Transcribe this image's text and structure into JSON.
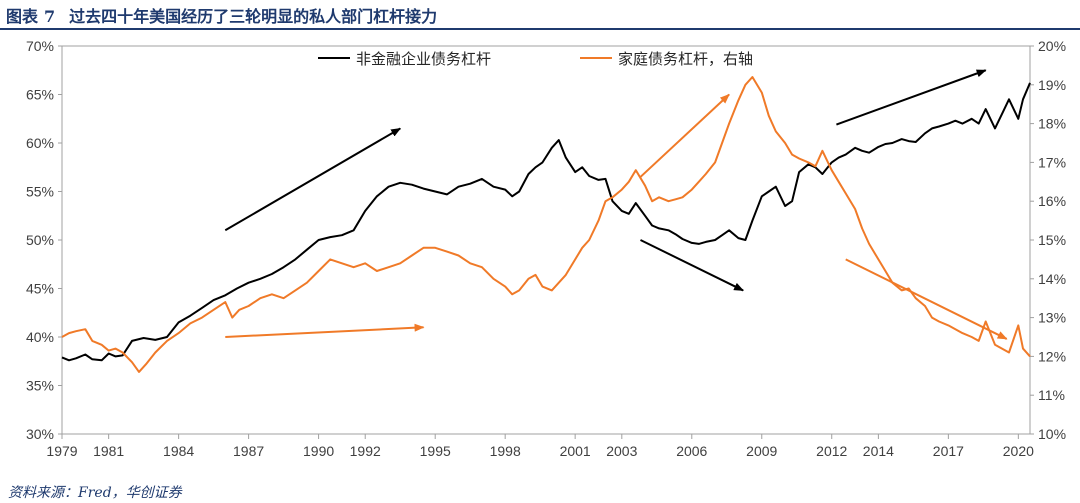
{
  "header": {
    "label": "图表",
    "number": "7",
    "title": "过去四十年美国经历了三轮明显的私人部门杠杆接力"
  },
  "source": "资料来源：Fred，华创证券",
  "colors": {
    "series_black": "#000000",
    "series_orange": "#f07a28",
    "header": "#1f3a6e",
    "axis": "#a0a0a0"
  },
  "chart_data": {
    "type": "line",
    "xlabel": "",
    "ylabel_left": "",
    "ylabel_right": "",
    "x_ticks": [
      "1979",
      "1981",
      "1984",
      "1987",
      "1990",
      "1992",
      "1995",
      "1998",
      "2001",
      "2003",
      "2006",
      "2009",
      "2012",
      "2014",
      "2017",
      "2020"
    ],
    "x_range": [
      1979.0,
      2020.5
    ],
    "y_left": {
      "range": [
        30,
        70
      ],
      "ticks": [
        "30%",
        "35%",
        "40%",
        "45%",
        "50%",
        "55%",
        "60%",
        "65%",
        "70%"
      ]
    },
    "y_right": {
      "range": [
        10,
        20
      ],
      "ticks": [
        "10%",
        "11%",
        "12%",
        "13%",
        "14%",
        "15%",
        "16%",
        "17%",
        "18%",
        "19%",
        "20%"
      ]
    },
    "legend_position": "top-center",
    "series": [
      {
        "name": "非金融企业债务杠杆",
        "axis": "left",
        "color": "#000000",
        "points": [
          [
            1979.0,
            37.9
          ],
          [
            1979.3,
            37.6
          ],
          [
            1979.6,
            37.8
          ],
          [
            1980.0,
            38.2
          ],
          [
            1980.3,
            37.7
          ],
          [
            1980.7,
            37.6
          ],
          [
            1981.0,
            38.3
          ],
          [
            1981.3,
            38.0
          ],
          [
            1981.6,
            38.1
          ],
          [
            1982.0,
            39.6
          ],
          [
            1982.5,
            39.9
          ],
          [
            1983.0,
            39.7
          ],
          [
            1983.5,
            40.0
          ],
          [
            1984.0,
            41.5
          ],
          [
            1984.5,
            42.2
          ],
          [
            1985.0,
            43.0
          ],
          [
            1985.5,
            43.8
          ],
          [
            1986.0,
            44.3
          ],
          [
            1986.5,
            45.0
          ],
          [
            1987.0,
            45.6
          ],
          [
            1987.5,
            46.0
          ],
          [
            1988.0,
            46.5
          ],
          [
            1988.5,
            47.2
          ],
          [
            1989.0,
            48.0
          ],
          [
            1989.5,
            49.0
          ],
          [
            1990.0,
            50.0
          ],
          [
            1990.5,
            50.3
          ],
          [
            1991.0,
            50.5
          ],
          [
            1991.5,
            51.0
          ],
          [
            1992.0,
            53.0
          ],
          [
            1992.5,
            54.5
          ],
          [
            1993.0,
            55.5
          ],
          [
            1993.5,
            55.9
          ],
          [
            1994.0,
            55.7
          ],
          [
            1994.5,
            55.3
          ],
          [
            1995.0,
            55.0
          ],
          [
            1995.5,
            54.7
          ],
          [
            1996.0,
            55.5
          ],
          [
            1996.5,
            55.8
          ],
          [
            1997.0,
            56.3
          ],
          [
            1997.5,
            55.5
          ],
          [
            1998.0,
            55.2
          ],
          [
            1998.3,
            54.5
          ],
          [
            1998.6,
            55.0
          ],
          [
            1999.0,
            56.8
          ],
          [
            1999.3,
            57.5
          ],
          [
            1999.6,
            58.0
          ],
          [
            2000.0,
            59.5
          ],
          [
            2000.3,
            60.3
          ],
          [
            2000.6,
            58.5
          ],
          [
            2001.0,
            57.0
          ],
          [
            2001.3,
            57.5
          ],
          [
            2001.6,
            56.6
          ],
          [
            2002.0,
            56.2
          ],
          [
            2002.3,
            56.3
          ],
          [
            2002.6,
            54.0
          ],
          [
            2003.0,
            53.0
          ],
          [
            2003.3,
            52.7
          ],
          [
            2003.6,
            53.8
          ],
          [
            2004.0,
            52.5
          ],
          [
            2004.3,
            51.5
          ],
          [
            2004.6,
            51.2
          ],
          [
            2005.0,
            51.0
          ],
          [
            2005.3,
            50.6
          ],
          [
            2005.6,
            50.1
          ],
          [
            2006.0,
            49.7
          ],
          [
            2006.3,
            49.6
          ],
          [
            2006.6,
            49.8
          ],
          [
            2007.0,
            50.0
          ],
          [
            2007.3,
            50.5
          ],
          [
            2007.6,
            51.0
          ],
          [
            2008.0,
            50.2
          ],
          [
            2008.3,
            50.0
          ],
          [
            2008.6,
            52.0
          ],
          [
            2009.0,
            54.5
          ],
          [
            2009.3,
            55.0
          ],
          [
            2009.6,
            55.5
          ],
          [
            2010.0,
            53.5
          ],
          [
            2010.3,
            54.0
          ],
          [
            2010.6,
            57.0
          ],
          [
            2011.0,
            57.8
          ],
          [
            2011.3,
            57.5
          ],
          [
            2011.6,
            56.8
          ],
          [
            2012.0,
            58.0
          ],
          [
            2012.3,
            58.5
          ],
          [
            2012.6,
            58.8
          ],
          [
            2013.0,
            59.5
          ],
          [
            2013.3,
            59.2
          ],
          [
            2013.6,
            59.0
          ],
          [
            2014.0,
            59.6
          ],
          [
            2014.3,
            59.9
          ],
          [
            2014.6,
            60.0
          ],
          [
            2015.0,
            60.4
          ],
          [
            2015.3,
            60.2
          ],
          [
            2015.6,
            60.1
          ],
          [
            2016.0,
            61.0
          ],
          [
            2016.3,
            61.5
          ],
          [
            2016.6,
            61.7
          ],
          [
            2017.0,
            62.0
          ],
          [
            2017.3,
            62.3
          ],
          [
            2017.6,
            62.0
          ],
          [
            2018.0,
            62.5
          ],
          [
            2018.3,
            62.0
          ],
          [
            2018.6,
            63.5
          ],
          [
            2019.0,
            61.5
          ],
          [
            2019.3,
            63.0
          ],
          [
            2019.6,
            64.5
          ],
          [
            2020.0,
            62.5
          ],
          [
            2020.2,
            64.5
          ],
          [
            2020.5,
            66.2
          ]
        ]
      },
      {
        "name": "家庭债务杠杆，右轴",
        "axis": "right",
        "color": "#f07a28",
        "points": [
          [
            1979.0,
            12.5
          ],
          [
            1979.3,
            12.6
          ],
          [
            1979.6,
            12.65
          ],
          [
            1980.0,
            12.7
          ],
          [
            1980.3,
            12.4
          ],
          [
            1980.7,
            12.3
          ],
          [
            1981.0,
            12.15
          ],
          [
            1981.3,
            12.2
          ],
          [
            1981.6,
            12.1
          ],
          [
            1982.0,
            11.85
          ],
          [
            1982.3,
            11.6
          ],
          [
            1982.6,
            11.8
          ],
          [
            1983.0,
            12.1
          ],
          [
            1983.5,
            12.4
          ],
          [
            1984.0,
            12.6
          ],
          [
            1984.5,
            12.85
          ],
          [
            1985.0,
            13.0
          ],
          [
            1985.5,
            13.2
          ],
          [
            1986.0,
            13.4
          ],
          [
            1986.3,
            13.0
          ],
          [
            1986.6,
            13.2
          ],
          [
            1987.0,
            13.3
          ],
          [
            1987.5,
            13.5
          ],
          [
            1988.0,
            13.6
          ],
          [
            1988.5,
            13.5
          ],
          [
            1989.0,
            13.7
          ],
          [
            1989.5,
            13.9
          ],
          [
            1990.0,
            14.2
          ],
          [
            1990.5,
            14.5
          ],
          [
            1991.0,
            14.4
          ],
          [
            1991.5,
            14.3
          ],
          [
            1992.0,
            14.4
          ],
          [
            1992.5,
            14.2
          ],
          [
            1993.0,
            14.3
          ],
          [
            1993.5,
            14.4
          ],
          [
            1994.0,
            14.6
          ],
          [
            1994.5,
            14.8
          ],
          [
            1995.0,
            14.8
          ],
          [
            1995.5,
            14.7
          ],
          [
            1996.0,
            14.6
          ],
          [
            1996.5,
            14.4
          ],
          [
            1997.0,
            14.3
          ],
          [
            1997.5,
            14.0
          ],
          [
            1998.0,
            13.8
          ],
          [
            1998.3,
            13.6
          ],
          [
            1998.6,
            13.7
          ],
          [
            1999.0,
            14.0
          ],
          [
            1999.3,
            14.1
          ],
          [
            1999.6,
            13.8
          ],
          [
            2000.0,
            13.7
          ],
          [
            2000.3,
            13.9
          ],
          [
            2000.6,
            14.1
          ],
          [
            2001.0,
            14.5
          ],
          [
            2001.3,
            14.8
          ],
          [
            2001.6,
            15.0
          ],
          [
            2002.0,
            15.5
          ],
          [
            2002.3,
            16.0
          ],
          [
            2002.6,
            16.1
          ],
          [
            2003.0,
            16.3
          ],
          [
            2003.3,
            16.5
          ],
          [
            2003.6,
            16.8
          ],
          [
            2004.0,
            16.4
          ],
          [
            2004.3,
            16.0
          ],
          [
            2004.6,
            16.1
          ],
          [
            2005.0,
            16.0
          ],
          [
            2005.3,
            16.05
          ],
          [
            2005.6,
            16.1
          ],
          [
            2006.0,
            16.3
          ],
          [
            2006.3,
            16.5
          ],
          [
            2006.6,
            16.7
          ],
          [
            2007.0,
            17.0
          ],
          [
            2007.3,
            17.5
          ],
          [
            2007.6,
            18.0
          ],
          [
            2008.0,
            18.6
          ],
          [
            2008.3,
            19.0
          ],
          [
            2008.6,
            19.2
          ],
          [
            2009.0,
            18.8
          ],
          [
            2009.3,
            18.2
          ],
          [
            2009.6,
            17.8
          ],
          [
            2010.0,
            17.5
          ],
          [
            2010.3,
            17.2
          ],
          [
            2010.6,
            17.1
          ],
          [
            2011.0,
            17.0
          ],
          [
            2011.3,
            16.9
          ],
          [
            2011.6,
            17.3
          ],
          [
            2012.0,
            16.8
          ],
          [
            2012.3,
            16.5
          ],
          [
            2012.6,
            16.2
          ],
          [
            2013.0,
            15.8
          ],
          [
            2013.3,
            15.3
          ],
          [
            2013.6,
            14.9
          ],
          [
            2014.0,
            14.5
          ],
          [
            2014.3,
            14.2
          ],
          [
            2014.6,
            13.9
          ],
          [
            2015.0,
            13.7
          ],
          [
            2015.3,
            13.75
          ],
          [
            2015.6,
            13.5
          ],
          [
            2016.0,
            13.3
          ],
          [
            2016.3,
            13.0
          ],
          [
            2016.6,
            12.9
          ],
          [
            2017.0,
            12.8
          ],
          [
            2017.3,
            12.7
          ],
          [
            2017.6,
            12.6
          ],
          [
            2018.0,
            12.5
          ],
          [
            2018.3,
            12.4
          ],
          [
            2018.6,
            12.9
          ],
          [
            2019.0,
            12.3
          ],
          [
            2019.3,
            12.2
          ],
          [
            2019.6,
            12.1
          ],
          [
            2020.0,
            12.8
          ],
          [
            2020.2,
            12.2
          ],
          [
            2020.5,
            12.0
          ]
        ]
      }
    ],
    "annotations": [
      {
        "type": "arrow",
        "color": "#000000",
        "from": [
          1986.0,
          51.0
        ],
        "to": [
          1993.5,
          61.5
        ]
      },
      {
        "type": "arrow",
        "color": "#f07a28",
        "from": [
          1986.0,
          40.0
        ],
        "to": [
          1994.5,
          41.0
        ]
      },
      {
        "type": "arrow",
        "color": "#000000",
        "from": [
          2003.8,
          50.0
        ],
        "to": [
          2008.2,
          44.8
        ]
      },
      {
        "type": "arrow",
        "color": "#f07a28",
        "from": [
          2003.8,
          56.5
        ],
        "to": [
          2007.6,
          65.0
        ]
      },
      {
        "type": "arrow",
        "color": "#000000",
        "from": [
          2012.2,
          61.9
        ],
        "to": [
          2018.6,
          67.5
        ]
      },
      {
        "type": "arrow",
        "color": "#f07a28",
        "from": [
          2012.6,
          48.0
        ],
        "to": [
          2019.5,
          39.8
        ]
      }
    ]
  }
}
